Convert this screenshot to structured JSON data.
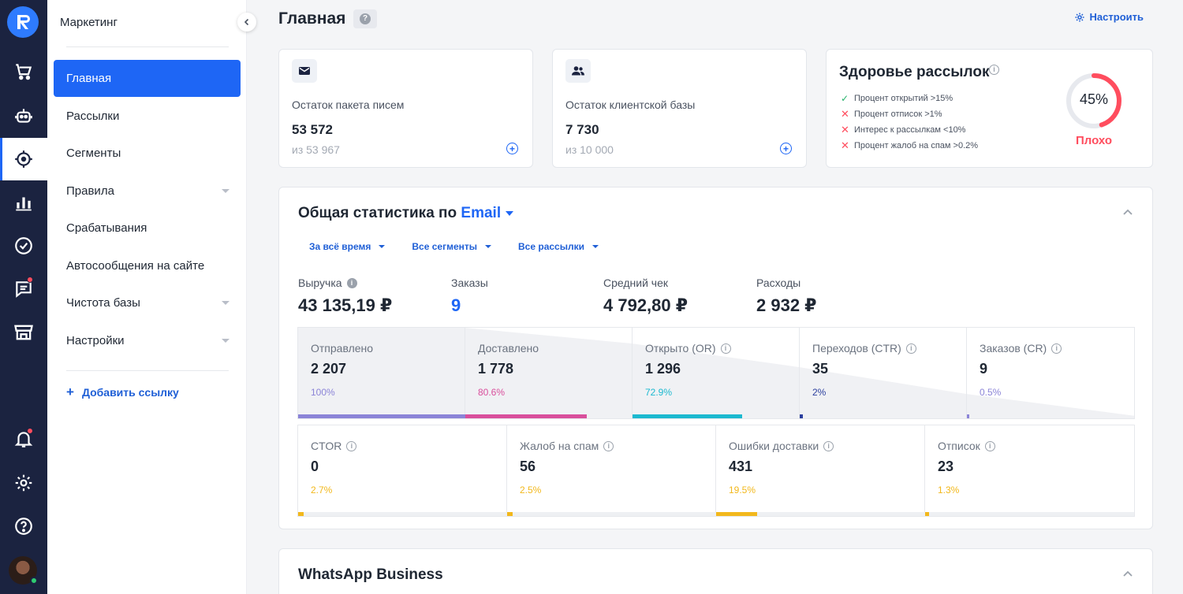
{
  "sidebar": {
    "title": "Маркетинг",
    "items": [
      {
        "label": "Главная"
      },
      {
        "label": "Рассылки"
      },
      {
        "label": "Сегменты"
      },
      {
        "label": "Правила"
      },
      {
        "label": "Срабатывания"
      },
      {
        "label": "Автосообщения на сайте"
      },
      {
        "label": "Чистота базы"
      },
      {
        "label": "Настройки"
      }
    ],
    "add_link": "Добавить ссылку"
  },
  "rail": {
    "icons": [
      "cart-icon",
      "bot-icon",
      "target-icon",
      "chart-icon",
      "check-circle-icon",
      "chat-icon",
      "store-icon",
      "bell-icon",
      "gear-icon",
      "help-icon"
    ]
  },
  "header": {
    "title": "Главная",
    "help": "?",
    "setup_label": "Настроить"
  },
  "cards": {
    "letters": {
      "label": "Остаток пакета писем",
      "value": "53 572",
      "sub": "из 53 967"
    },
    "clients": {
      "label": "Остаток клиентской базы",
      "value": "7 730",
      "sub": "из 10 000"
    }
  },
  "health": {
    "title": "Здоровье рассылок",
    "items": [
      {
        "text": "Процент открытий >15%",
        "ok": true
      },
      {
        "text": "Процент отписок >1%",
        "ok": false
      },
      {
        "text": "Интерес к рассылкам <10%",
        "ok": false
      },
      {
        "text": "Процент жалоб на спам >0.2%",
        "ok": false
      }
    ],
    "percent_label": "45%",
    "percent": 45,
    "status": "Плохо",
    "status_color": "#ff4d5e"
  },
  "stats": {
    "title": "Общая статистика по",
    "channel": "Email",
    "filters": [
      "За всё время",
      "Все сегменты",
      "Все рассылки"
    ],
    "kpis": [
      {
        "label": "Выручка",
        "value": "43 135,19 ₽"
      },
      {
        "label": "Заказы",
        "value": "9"
      },
      {
        "label": "Средний чек",
        "value": "4 792,80 ₽"
      },
      {
        "label": "Расходы",
        "value": "2 932 ₽"
      }
    ],
    "funnel": [
      {
        "label": "Отправлено",
        "value": "2 207",
        "pct": "100%",
        "fill": 1.0,
        "color": "#8b84d7"
      },
      {
        "label": "Доставлено",
        "value": "1 778",
        "pct": "80.6%",
        "fill": 0.806,
        "color": "#d94f9c"
      },
      {
        "label": "Открыто (OR)",
        "value": "1 296",
        "pct": "72.9%",
        "fill": 0.729,
        "color": "#1bb9d0"
      },
      {
        "label": "Переходов (CTR)",
        "value": "35",
        "pct": "2%",
        "fill": 0.02,
        "color": "#2b3f9e"
      },
      {
        "label": "Заказов (CR)",
        "value": "9",
        "pct": "0.5%",
        "fill": 0.005,
        "color": "#8b84d7"
      }
    ],
    "secondary": [
      {
        "label": "CTOR",
        "value": "0",
        "pct": "2.7%",
        "fill": 0.027
      },
      {
        "label": "Жалоб на спам",
        "value": "56",
        "pct": "2.5%",
        "fill": 0.025
      },
      {
        "label": "Ошибки доставки",
        "value": "431",
        "pct": "19.5%",
        "fill": 0.195
      },
      {
        "label": "Отписок",
        "value": "23",
        "pct": "1.3%",
        "fill": 0.013
      }
    ],
    "secondary_color": "#f2b81c"
  },
  "whatsapp": {
    "title": "WhatsApp Business"
  }
}
